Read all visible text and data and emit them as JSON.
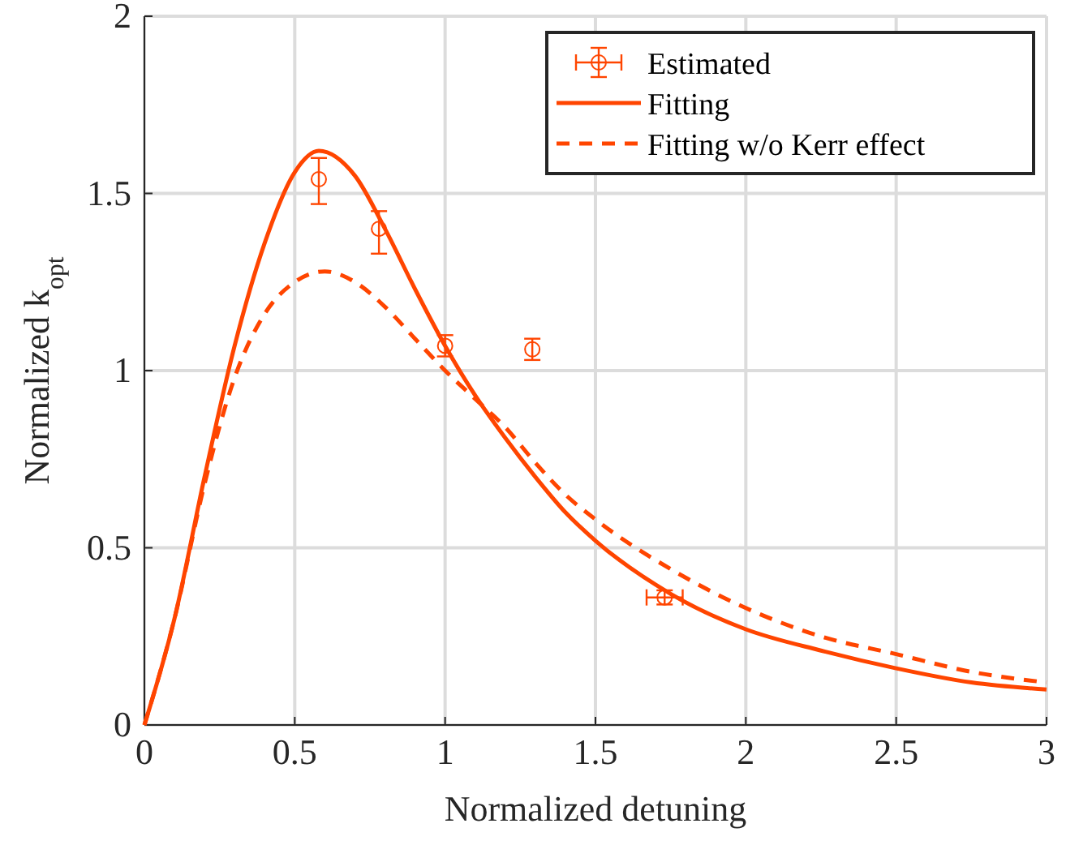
{
  "chart_data": {
    "type": "scatter",
    "xlabel": "Normalized detuning",
    "ylabel": "Normalized k$_{opt}$",
    "xlim": [
      0,
      3
    ],
    "ylim": [
      0,
      2
    ],
    "xticks": [
      0,
      0.5,
      1,
      1.5,
      2,
      2.5,
      3
    ],
    "yticks": [
      0,
      0.5,
      1,
      1.5,
      2
    ],
    "grid": true,
    "legend": "top right",
    "series": [
      {
        "name": "Estimated",
        "type": "scatter",
        "marker": "circle",
        "color": "#ff4500",
        "x": [
          0.58,
          0.78,
          1.0,
          1.29,
          1.73
        ],
        "values": [
          1.54,
          1.4,
          1.07,
          1.06,
          0.36
        ],
        "errors": [
          [
            1.47,
            1.6
          ],
          [
            1.33,
            1.45
          ],
          [
            1.04,
            1.1
          ],
          [
            1.03,
            1.09
          ],
          [
            0.34,
            0.38
          ]
        ],
        "xerrors": [
          null,
          null,
          null,
          null,
          [
            1.67,
            1.79
          ]
        ]
      },
      {
        "name": "Fitting",
        "type": "line",
        "line_style": "solid",
        "color": "#ff4500",
        "x": [
          0,
          0.1,
          0.2,
          0.3,
          0.4,
          0.5,
          0.58,
          0.7,
          0.8,
          0.9,
          1.0,
          1.1,
          1.2,
          1.3,
          1.4,
          1.5,
          1.75,
          2,
          2.25,
          2.5,
          2.75,
          3
        ],
        "values": [
          0,
          0.3,
          0.7,
          1.07,
          1.36,
          1.56,
          1.62,
          1.55,
          1.4,
          1.23,
          1.07,
          0.93,
          0.81,
          0.7,
          0.6,
          0.52,
          0.37,
          0.27,
          0.21,
          0.16,
          0.12,
          0.1
        ]
      },
      {
        "name": "Fitting w/o Kerr effect",
        "type": "line",
        "line_style": "dashed",
        "color": "#ff4500",
        "x": [
          0,
          0.1,
          0.2,
          0.3,
          0.4,
          0.5,
          0.6,
          0.7,
          0.8,
          0.9,
          1.0,
          1.1,
          1.2,
          1.3,
          1.4,
          1.5,
          1.75,
          2,
          2.25,
          2.5,
          2.75,
          3
        ],
        "values": [
          0,
          0.3,
          0.68,
          0.98,
          1.16,
          1.25,
          1.28,
          1.25,
          1.18,
          1.09,
          1.0,
          0.92,
          0.84,
          0.74,
          0.65,
          0.58,
          0.44,
          0.33,
          0.25,
          0.2,
          0.15,
          0.12
        ]
      }
    ]
  }
}
